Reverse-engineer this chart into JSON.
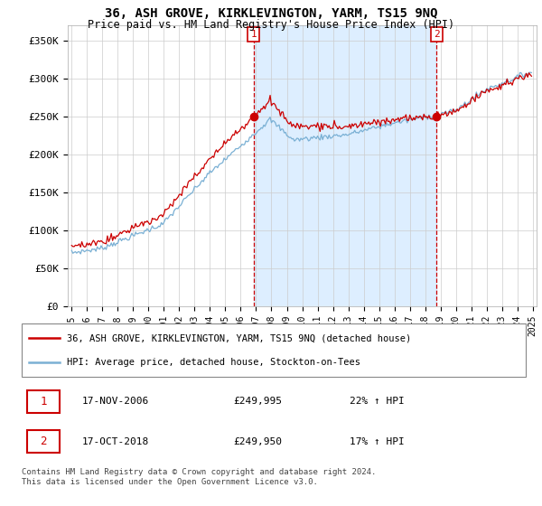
{
  "title": "36, ASH GROVE, KIRKLEVINGTON, YARM, TS15 9NQ",
  "subtitle": "Price paid vs. HM Land Registry's House Price Index (HPI)",
  "ylabel_ticks": [
    "£0",
    "£50K",
    "£100K",
    "£150K",
    "£200K",
    "£250K",
    "£300K",
    "£350K"
  ],
  "ytick_vals": [
    0,
    50000,
    100000,
    150000,
    200000,
    250000,
    300000,
    350000
  ],
  "ylim": [
    0,
    370000
  ],
  "sale1_price": 249995,
  "sale2_price": 249950,
  "red_color": "#cc0000",
  "blue_color": "#7ab0d4",
  "shade_color": "#ddeeff",
  "legend_red_label": "36, ASH GROVE, KIRKLEVINGTON, YARM, TS15 9NQ (detached house)",
  "legend_blue_label": "HPI: Average price, detached house, Stockton-on-Tees",
  "table_row1": [
    "1",
    "17-NOV-2006",
    "£249,995",
    "22% ↑ HPI"
  ],
  "table_row2": [
    "2",
    "17-OCT-2018",
    "£249,950",
    "17% ↑ HPI"
  ],
  "footer1": "Contains HM Land Registry data © Crown copyright and database right 2024.",
  "footer2": "This data is licensed under the Open Government Licence v3.0.",
  "background_color": "#ffffff",
  "grid_color": "#cccccc"
}
